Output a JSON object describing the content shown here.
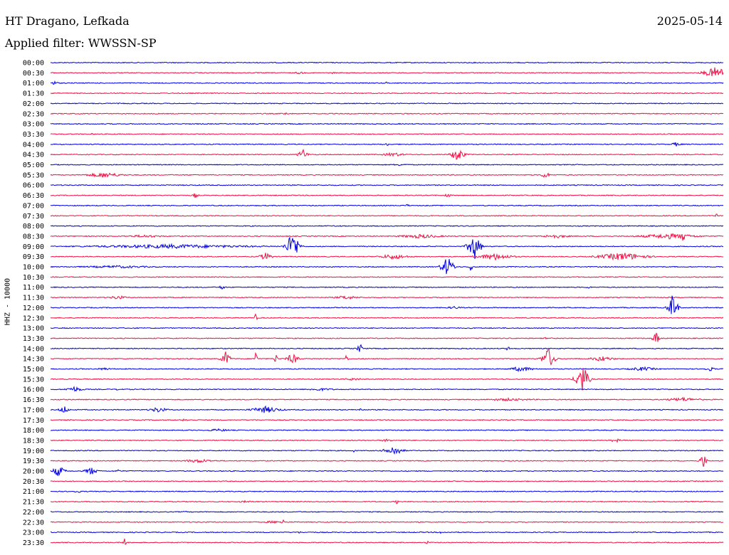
{
  "header": {
    "station": "HT Dragano, Lefkada",
    "date": "2025-05-14",
    "filter": "Applied filter: WWSSN-SP"
  },
  "axis": {
    "channel_label": "HHZ - 10000"
  },
  "colors": {
    "even_trace": "#0000e0",
    "odd_trace": "#ee1144"
  },
  "chart_data": {
    "type": "line",
    "kind": "helicorder",
    "rows": [
      {
        "time": "00:00",
        "events": []
      },
      {
        "time": "00:30",
        "events": [
          {
            "x": 0.37,
            "amp": 2,
            "width": 0.02
          },
          {
            "x": 0.42,
            "amp": 1.5,
            "width": 0.01
          },
          {
            "x": 0.99,
            "amp": 9,
            "width": 0.04
          }
        ]
      },
      {
        "time": "01:00",
        "events": [
          {
            "x": 0.005,
            "amp": 3,
            "width": 0.015
          },
          {
            "x": 0.5,
            "amp": 2,
            "width": 0.01
          }
        ]
      },
      {
        "time": "01:30",
        "events": []
      },
      {
        "time": "02:00",
        "events": [
          {
            "x": 0.96,
            "amp": 2,
            "width": 0.005
          }
        ]
      },
      {
        "time": "02:30",
        "events": [
          {
            "x": 0.35,
            "amp": 2,
            "width": 0.01
          }
        ]
      },
      {
        "time": "03:00",
        "events": []
      },
      {
        "time": "03:30",
        "events": [
          {
            "x": 0.06,
            "amp": 1.5,
            "width": 0.01
          }
        ]
      },
      {
        "time": "04:00",
        "events": [
          {
            "x": 0.5,
            "amp": 2,
            "width": 0.02
          },
          {
            "x": 0.93,
            "amp": 3,
            "width": 0.02
          }
        ]
      },
      {
        "time": "04:30",
        "events": [
          {
            "x": 0.375,
            "amp": 8,
            "width": 0.015
          },
          {
            "x": 0.51,
            "amp": 3,
            "width": 0.04
          },
          {
            "x": 0.605,
            "amp": 11,
            "width": 0.02
          }
        ]
      },
      {
        "time": "05:00",
        "events": [
          {
            "x": 0.52,
            "amp": 1.5,
            "width": 0.04
          }
        ]
      },
      {
        "time": "05:30",
        "events": [
          {
            "x": 0.08,
            "amp": 4,
            "width": 0.06
          },
          {
            "x": 0.735,
            "amp": 5,
            "width": 0.015
          }
        ]
      },
      {
        "time": "06:00",
        "events": []
      },
      {
        "time": "06:30",
        "events": [
          {
            "x": 0.215,
            "amp": 4,
            "width": 0.01
          },
          {
            "x": 0.59,
            "amp": 4,
            "width": 0.01
          }
        ]
      },
      {
        "time": "07:00",
        "events": [
          {
            "x": 0.53,
            "amp": 2,
            "width": 0.01
          }
        ]
      },
      {
        "time": "07:30",
        "events": [
          {
            "x": 0.99,
            "amp": 3,
            "width": 0.005
          }
        ]
      },
      {
        "time": "08:00",
        "events": [
          {
            "x": 0.43,
            "amp": 3,
            "width": 0.005
          }
        ]
      },
      {
        "time": "08:30",
        "events": [
          {
            "x": 0.14,
            "amp": 2,
            "width": 0.08
          },
          {
            "x": 0.55,
            "amp": 3,
            "width": 0.08
          },
          {
            "x": 0.75,
            "amp": 3,
            "width": 0.05
          },
          {
            "x": 0.94,
            "amp": 14,
            "width": 0.005
          },
          {
            "x": 0.92,
            "amp": 4,
            "width": 0.1
          }
        ]
      },
      {
        "time": "09:00",
        "events": [
          {
            "x": 0.18,
            "amp": 3,
            "width": 0.3
          },
          {
            "x": 0.36,
            "amp": 22,
            "width": 0.02
          },
          {
            "x": 0.63,
            "amp": 20,
            "width": 0.02
          }
        ]
      },
      {
        "time": "09:30",
        "events": [
          {
            "x": 0.32,
            "amp": 6,
            "width": 0.02
          },
          {
            "x": 0.51,
            "amp": 4,
            "width": 0.05
          },
          {
            "x": 0.66,
            "amp": 5,
            "width": 0.06
          },
          {
            "x": 0.85,
            "amp": 6,
            "width": 0.08
          }
        ]
      },
      {
        "time": "10:00",
        "events": [
          {
            "x": 0.1,
            "amp": 2,
            "width": 0.15
          },
          {
            "x": 0.59,
            "amp": 15,
            "width": 0.02
          },
          {
            "x": 0.625,
            "amp": 12,
            "width": 0.005
          }
        ]
      },
      {
        "time": "10:30",
        "events": []
      },
      {
        "time": "11:00",
        "events": [
          {
            "x": 0.255,
            "amp": 5,
            "width": 0.008
          },
          {
            "x": 0.8,
            "amp": 2,
            "width": 0.01
          }
        ]
      },
      {
        "time": "11:30",
        "events": [
          {
            "x": 0.1,
            "amp": 3,
            "width": 0.03
          },
          {
            "x": 0.44,
            "amp": 3,
            "width": 0.04
          }
        ]
      },
      {
        "time": "12:00",
        "events": [
          {
            "x": 0.6,
            "amp": 2,
            "width": 0.03
          },
          {
            "x": 0.925,
            "amp": 20,
            "width": 0.015
          }
        ]
      },
      {
        "time": "12:30",
        "events": [
          {
            "x": 0.305,
            "amp": 6,
            "width": 0.005
          }
        ]
      },
      {
        "time": "13:00",
        "events": []
      },
      {
        "time": "13:30",
        "events": [
          {
            "x": 0.9,
            "amp": 9,
            "width": 0.012
          },
          {
            "x": 0.735,
            "amp": 2,
            "width": 0.005
          }
        ]
      },
      {
        "time": "14:00",
        "events": [
          {
            "x": 0.46,
            "amp": 8,
            "width": 0.008
          },
          {
            "x": 0.68,
            "amp": 3,
            "width": 0.01
          }
        ]
      },
      {
        "time": "14:30",
        "events": [
          {
            "x": 0.26,
            "amp": 11,
            "width": 0.015
          },
          {
            "x": 0.305,
            "amp": 12,
            "width": 0.005
          },
          {
            "x": 0.335,
            "amp": 10,
            "width": 0.005
          },
          {
            "x": 0.36,
            "amp": 8,
            "width": 0.02
          },
          {
            "x": 0.44,
            "amp": 8,
            "width": 0.005
          },
          {
            "x": 0.74,
            "amp": 16,
            "width": 0.02
          },
          {
            "x": 0.82,
            "amp": 4,
            "width": 0.04
          }
        ]
      },
      {
        "time": "15:00",
        "events": [
          {
            "x": 0.08,
            "amp": 2,
            "width": 0.03
          },
          {
            "x": 0.7,
            "amp": 4,
            "width": 0.04
          },
          {
            "x": 0.88,
            "amp": 3,
            "width": 0.05
          },
          {
            "x": 0.98,
            "amp": 3,
            "width": 0.02
          }
        ]
      },
      {
        "time": "15:30",
        "events": [
          {
            "x": 0.45,
            "amp": 2,
            "width": 0.04
          },
          {
            "x": 0.79,
            "amp": 22,
            "width": 0.02
          }
        ]
      },
      {
        "time": "16:00",
        "events": [
          {
            "x": 0.035,
            "amp": 4,
            "width": 0.03
          },
          {
            "x": 0.1,
            "amp": 3,
            "width": 0.005
          },
          {
            "x": 0.4,
            "amp": 2,
            "width": 0.06
          }
        ]
      },
      {
        "time": "16:30",
        "events": [
          {
            "x": 0.68,
            "amp": 2,
            "width": 0.1
          },
          {
            "x": 0.94,
            "amp": 3,
            "width": 0.06
          }
        ]
      },
      {
        "time": "17:00",
        "events": [
          {
            "x": 0.02,
            "amp": 6,
            "width": 0.015
          },
          {
            "x": 0.16,
            "amp": 4,
            "width": 0.03
          },
          {
            "x": 0.32,
            "amp": 5,
            "width": 0.05
          },
          {
            "x": 0.46,
            "amp": 3,
            "width": 0.005
          }
        ]
      },
      {
        "time": "17:30",
        "events": [
          {
            "x": 0.2,
            "amp": 3,
            "width": 0.01
          }
        ]
      },
      {
        "time": "18:00",
        "events": [
          {
            "x": 0.25,
            "amp": 2,
            "width": 0.05
          }
        ]
      },
      {
        "time": "18:30",
        "events": [
          {
            "x": 0.5,
            "amp": 2,
            "width": 0.03
          },
          {
            "x": 0.84,
            "amp": 3,
            "width": 0.02
          }
        ]
      },
      {
        "time": "19:00",
        "events": [
          {
            "x": 0.45,
            "amp": 3,
            "width": 0.005
          },
          {
            "x": 0.51,
            "amp": 7,
            "width": 0.03
          }
        ]
      },
      {
        "time": "19:30",
        "events": [
          {
            "x": 0.22,
            "amp": 3,
            "width": 0.05
          },
          {
            "x": 0.97,
            "amp": 12,
            "width": 0.01
          }
        ]
      },
      {
        "time": "20:00",
        "events": [
          {
            "x": 0.012,
            "amp": 8,
            "width": 0.02
          },
          {
            "x": 0.06,
            "amp": 6,
            "width": 0.02
          },
          {
            "x": 0.1,
            "amp": 2,
            "width": 0.02
          }
        ]
      },
      {
        "time": "20:30",
        "events": []
      },
      {
        "time": "21:00",
        "events": [
          {
            "x": 0.04,
            "amp": 3,
            "width": 0.01
          }
        ]
      },
      {
        "time": "21:30",
        "events": [
          {
            "x": 0.29,
            "amp": 1.5,
            "width": 0.04
          },
          {
            "x": 0.515,
            "amp": 4,
            "width": 0.005
          }
        ]
      },
      {
        "time": "22:00",
        "events": [
          {
            "x": 0.2,
            "amp": 4,
            "width": 0.004
          }
        ]
      },
      {
        "time": "22:30",
        "events": [
          {
            "x": 0.33,
            "amp": 2,
            "width": 0.03
          },
          {
            "x": 0.345,
            "amp": 7,
            "width": 0.005
          }
        ]
      },
      {
        "time": "23:00",
        "events": [
          {
            "x": 0.37,
            "amp": 2,
            "width": 0.005
          },
          {
            "x": 0.58,
            "amp": 2,
            "width": 0.005
          }
        ]
      },
      {
        "time": "23:30",
        "events": [
          {
            "x": 0.11,
            "amp": 9,
            "width": 0.005
          },
          {
            "x": 0.56,
            "amp": 4,
            "width": 0.004
          }
        ]
      }
    ]
  }
}
